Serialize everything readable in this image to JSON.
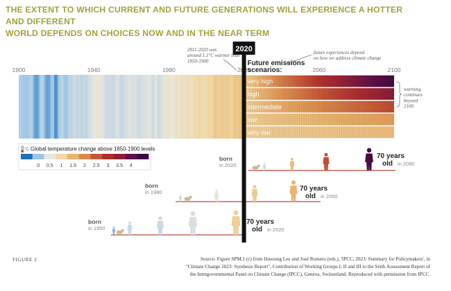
{
  "title_lines": [
    "THE EXTENT TO WHICH CURRENT AND FUTURE GENERATIONS WILL EXPERIENCE A HOTTER AND DIFFERENT",
    "WORLD DEPENDS ON CHOICES NOW AND IN THE NEAR TERM"
  ],
  "colors": {
    "title": "#a3a13a",
    "warming_scale": [
      "#1f6fb5",
      "#9cc5e7",
      "#e8e6de",
      "#f0d7a5",
      "#e9b470",
      "#d98a4b",
      "#c65a38",
      "#ad2f2c",
      "#8e1e36",
      "#5d1049",
      "#3a0a3f"
    ],
    "divider": "#111111",
    "axis_line": "#b9463a"
  },
  "chart_data": {
    "type": "heatmap",
    "x_axis": {
      "range": [
        1900,
        2100
      ],
      "tick_labels": [
        "1900",
        "1940",
        "1980",
        "2020",
        "2060",
        "2100"
      ],
      "tick_values": [
        1900,
        1940,
        1980,
        2020,
        2060,
        2100
      ]
    },
    "highlight_year": "2020",
    "annotations": {
      "past": "2011-2020 was around 1.1°C warmer than 1850-1900",
      "future": "future experiences depend on how we address climate change",
      "continues": "warming continues beyond 2100"
    },
    "scenario_heading": [
      "Future emissions",
      "scenarios:"
    ],
    "observed_anomaly": {
      "start_year": 1900,
      "values": [
        0.15,
        0.12,
        0.05,
        0.08,
        0.02,
        0.1,
        0.18,
        0.05,
        -0.2,
        -0.25,
        -0.18,
        0.08,
        0.22,
        0.05,
        -0.15,
        -0.22,
        -0.18,
        0.02,
        0.05,
        -0.3,
        -0.28,
        0.08,
        0.15,
        0.22,
        0.05,
        0.02,
        0.12,
        0.28,
        0.18,
        0.35,
        0.32,
        0.22,
        0.3,
        0.2,
        0.25,
        0.28,
        0.22,
        0.35,
        0.4,
        0.45,
        0.5,
        0.6,
        0.58,
        0.55,
        0.48,
        0.42,
        0.35,
        0.3,
        0.35,
        0.32,
        0.28,
        0.3,
        0.38,
        0.42,
        0.3,
        0.25,
        0.32,
        0.38,
        0.4,
        0.45,
        0.4,
        0.38,
        0.42,
        0.38,
        0.3,
        0.35,
        0.38,
        0.42,
        0.4,
        0.48,
        0.45,
        0.38,
        0.32,
        0.5,
        0.35,
        0.32,
        0.38,
        0.45,
        0.55,
        0.62,
        0.72,
        0.58,
        0.55,
        0.6,
        0.75,
        0.68,
        0.58,
        0.82,
        0.78,
        0.7,
        0.88,
        0.85,
        0.72,
        0.8,
        0.92,
        0.88,
        0.98,
        1.02,
        0.9,
        0.88,
        0.95,
        1.0,
        1.05,
        0.98,
        1.12,
        1.25,
        1.18,
        1.1,
        1.2,
        1.22,
        1.15,
        1.18,
        1.2,
        1.15,
        1.05,
        1.25,
        1.28,
        1.22,
        1.3,
        1.35,
        1.25
      ]
    },
    "scenarios": [
      {
        "name": "very high",
        "warming_2100": 4.4
      },
      {
        "name": "high",
        "warming_2100": 3.6
      },
      {
        "name": "intermediate",
        "warming_2100": 2.7
      },
      {
        "name": "low",
        "warming_2100": 1.8
      },
      {
        "name": "very low",
        "warming_2100": 1.4
      }
    ],
    "legend": {
      "icon": "thermometer-icon",
      "unit": "°C",
      "title": "Global temperature change above 1850-1900 levels",
      "values": [
        -0.5,
        0,
        0.5,
        1,
        1.5,
        2,
        2.5,
        3,
        3.5,
        4,
        4.5
      ],
      "tick_labels": [
        "0",
        "0.5",
        "1",
        "1.5",
        "2",
        "2.5",
        "3",
        "3.5",
        "4"
      ]
    },
    "generations": [
      {
        "born_label": "born",
        "born_year": "in 2020",
        "age_label": "70 years",
        "old_label": "old",
        "old_year": "in 2090"
      },
      {
        "born_label": "born",
        "born_year": "in 1980",
        "age_label": "70 years",
        "old_label": "old",
        "old_year": "in 2050"
      },
      {
        "born_label": "born",
        "born_year": "in 1950",
        "age_label": "70 years",
        "old_label": "old",
        "old_year": "in 2020"
      }
    ]
  },
  "caption": {
    "figure_label": "FIGURE 2",
    "source_lines": [
      "Source: Figure SPM.1 (c) from Hoesung Lee and José Romero (eds.), 'IPCC, 2023: Summary for Policymakers', in",
      "\"Climate Change 2023: Synthesis Report\", Contribution of Working Groups I, II and III to the Sixth Assessment Report of",
      "the Intergovernmental Panel on Climate Change (IPCC), Geneva, Switzerland. Reproduced with permission from IPCC."
    ]
  }
}
